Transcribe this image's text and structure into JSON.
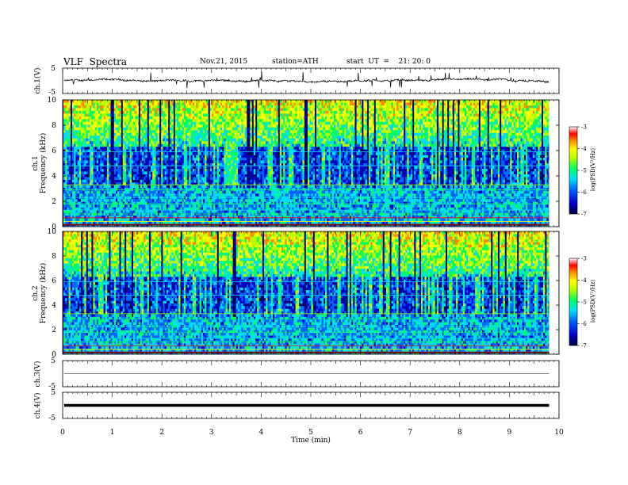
{
  "header": {
    "title": "VLF  Spectra",
    "date": "Nov.21, 2015",
    "station": "station=ATH",
    "start": "start  UT  =    21: 20: 0"
  },
  "chart_data": [
    {
      "type": "line",
      "name": "ch1-waveform",
      "ylabel": "ch.1(V)",
      "ylim": [
        -5,
        5
      ],
      "y_ticks": [
        "5",
        "-5"
      ],
      "description_values": {
        "baseline": 0,
        "spike_max": 4,
        "spike_min": -3
      }
    },
    {
      "type": "heatmap",
      "name": "ch1-spectrogram",
      "ylabel_channel": "ch.1",
      "ylabel": "Frequency  (kHz)",
      "ylim": [
        0,
        10
      ],
      "y_ticks": [
        "0",
        "2",
        "4",
        "6",
        "8",
        "10"
      ],
      "colorbar": {
        "label": "log(PSD(V²/Hz)",
        "range": [
          -7,
          -3
        ],
        "ticks": [
          "-3",
          "-4",
          "-5",
          "-6",
          "-7"
        ]
      }
    },
    {
      "type": "heatmap",
      "name": "ch2-spectrogram",
      "ylabel_channel": "ch.2",
      "ylabel": "Frequency  (kHz)",
      "ylim": [
        0,
        10
      ],
      "y_ticks": [
        "0",
        "2",
        "4",
        "6",
        "8",
        "10"
      ],
      "colorbar": {
        "label": "log(PSD(V²/Hz)",
        "range": [
          -7,
          -3
        ],
        "ticks": [
          "-3",
          "-4",
          "-5",
          "-6",
          "-7"
        ]
      }
    },
    {
      "type": "line",
      "name": "ch3-waveform",
      "ylabel": "ch.3(V)",
      "ylim": [
        -5,
        5
      ],
      "y_ticks": [
        "5",
        "-5"
      ],
      "description_values": {
        "baseline": 0
      }
    },
    {
      "type": "line",
      "name": "ch4-waveform",
      "ylabel": "ch.4(V)",
      "ylim": [
        -5,
        5
      ],
      "y_ticks": [
        "5",
        "-5"
      ],
      "description_values": {
        "baseline": 0
      }
    }
  ],
  "x_axis": {
    "label": "Time  (min)",
    "xlim": [
      0,
      10
    ],
    "ticks": [
      "0",
      "1",
      "2",
      "3",
      "4",
      "5",
      "6",
      "7",
      "8",
      "9",
      "10"
    ],
    "data_end": 9.8
  },
  "colors": {
    "colormap": [
      "#000050",
      "#0000c8",
      "#0064ff",
      "#00dcff",
      "#00ff64",
      "#b4ff00",
      "#ffff00",
      "#ff8c00",
      "#ff0000",
      "#ffffff"
    ]
  }
}
